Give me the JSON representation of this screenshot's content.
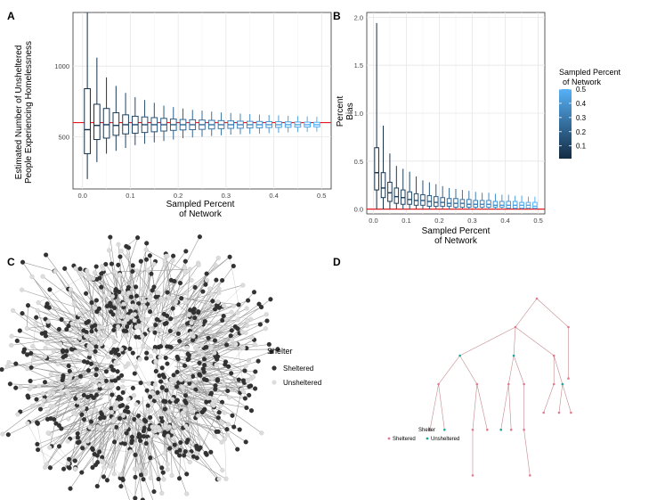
{
  "panels": {
    "A": {
      "letter": "A",
      "xlabel": [
        "Sampled Percent",
        "of Network"
      ],
      "ylabel": [
        "Estimated Number of Unsheltered",
        "People Experiencing Homelessness"
      ],
      "x_ticks": [
        "0.0",
        "0.1",
        "0.2",
        "0.3",
        "0.4",
        "0.5"
      ],
      "y_ticks": [
        "500",
        "1000"
      ]
    },
    "B": {
      "letter": "B",
      "xlabel": [
        "Sampled Percent",
        "of Network"
      ],
      "ylabel": [
        "Percent",
        "Bias"
      ],
      "x_ticks": [
        "0.0",
        "0.1",
        "0.2",
        "0.3",
        "0.4",
        "0.5"
      ],
      "y_ticks": [
        "0.0",
        "0.5",
        "1.0",
        "1.5",
        "2.0"
      ]
    },
    "C": {
      "letter": "C",
      "legend_title": "Shelter",
      "legend_items": [
        "Sheltered",
        "Unsheltered"
      ]
    },
    "D": {
      "letter": "D",
      "legend_title": "Shelter",
      "legend_items": [
        "Sheltered",
        "Unsheltered"
      ]
    }
  },
  "colorbar": {
    "title": [
      "Sampled Percent",
      "of Network"
    ],
    "ticks": [
      "0.5",
      "0.4",
      "0.3",
      "0.2",
      "0.1"
    ],
    "low_color": "#132B43",
    "high_color": "#56B1F7"
  },
  "colors": {
    "reference_line": "#e31a1c",
    "sheltered_C": "#333333",
    "unsheltered_C": "#dddddd",
    "sheltered_D": "#e07b91",
    "unsheltered_D": "#1aa89a",
    "panel_bg": "#ffffff",
    "grid": "#ebebeb"
  },
  "chart_data": [
    {
      "panel": "A",
      "type": "box",
      "x": [
        0.01,
        0.03,
        0.05,
        0.07,
        0.09,
        0.11,
        0.13,
        0.15,
        0.17,
        0.19,
        0.21,
        0.23,
        0.25,
        0.27,
        0.29,
        0.31,
        0.33,
        0.35,
        0.37,
        0.39,
        0.41,
        0.43,
        0.45,
        0.47,
        0.49
      ],
      "median": [
        550,
        580,
        585,
        580,
        585,
        585,
        585,
        585,
        585,
        585,
        585,
        585,
        585,
        585,
        585,
        585,
        585,
        585,
        585,
        585,
        585,
        585,
        585,
        585,
        585
      ],
      "q1": [
        380,
        480,
        490,
        510,
        520,
        525,
        530,
        535,
        540,
        545,
        548,
        550,
        552,
        555,
        557,
        559,
        560,
        562,
        563,
        565,
        566,
        567,
        568,
        569,
        570
      ],
      "q3": [
        840,
        730,
        700,
        670,
        655,
        645,
        640,
        635,
        630,
        625,
        622,
        620,
        618,
        616,
        614,
        612,
        610,
        609,
        608,
        607,
        606,
        605,
        604,
        603,
        602
      ],
      "whisker_low": [
        200,
        320,
        380,
        400,
        420,
        440,
        450,
        460,
        470,
        480,
        490,
        495,
        500,
        505,
        510,
        515,
        518,
        520,
        522,
        525,
        528,
        530,
        532,
        534,
        536
      ],
      "whisker_high": [
        1380,
        1060,
        920,
        860,
        810,
        780,
        760,
        740,
        720,
        710,
        700,
        690,
        685,
        678,
        672,
        668,
        664,
        660,
        657,
        654,
        651,
        648,
        646,
        644,
        642
      ],
      "reference": 600,
      "xlim": [
        -0.02,
        0.52
      ],
      "ylim": [
        130,
        1380
      ]
    },
    {
      "panel": "B",
      "type": "box",
      "x": [
        0.01,
        0.03,
        0.05,
        0.07,
        0.09,
        0.11,
        0.13,
        0.15,
        0.17,
        0.19,
        0.21,
        0.23,
        0.25,
        0.27,
        0.29,
        0.31,
        0.33,
        0.35,
        0.37,
        0.39,
        0.41,
        0.43,
        0.45,
        0.47,
        0.49
      ],
      "median": [
        0.38,
        0.22,
        0.17,
        0.13,
        0.12,
        0.1,
        0.09,
        0.09,
        0.08,
        0.07,
        0.07,
        0.06,
        0.06,
        0.06,
        0.05,
        0.05,
        0.05,
        0.05,
        0.04,
        0.04,
        0.04,
        0.04,
        0.04,
        0.04,
        0.03
      ],
      "q1": [
        0.2,
        0.12,
        0.08,
        0.06,
        0.05,
        0.05,
        0.04,
        0.04,
        0.03,
        0.03,
        0.03,
        0.03,
        0.02,
        0.02,
        0.02,
        0.02,
        0.02,
        0.02,
        0.02,
        0.02,
        0.01,
        0.01,
        0.01,
        0.01,
        0.01
      ],
      "q3": [
        0.64,
        0.38,
        0.28,
        0.22,
        0.2,
        0.18,
        0.16,
        0.15,
        0.14,
        0.13,
        0.12,
        0.11,
        0.11,
        0.1,
        0.1,
        0.09,
        0.09,
        0.09,
        0.08,
        0.08,
        0.08,
        0.08,
        0.07,
        0.07,
        0.07
      ],
      "whisker_low": [
        0.0,
        0.0,
        0.0,
        0.0,
        0.0,
        0.0,
        0.0,
        0.0,
        0.0,
        0.0,
        0.0,
        0.0,
        0.0,
        0.0,
        0.0,
        0.0,
        0.0,
        0.0,
        0.0,
        0.0,
        0.0,
        0.0,
        0.0,
        0.0,
        0.0
      ],
      "whisker_high": [
        1.94,
        0.87,
        0.58,
        0.45,
        0.42,
        0.39,
        0.34,
        0.3,
        0.28,
        0.26,
        0.24,
        0.22,
        0.21,
        0.2,
        0.19,
        0.18,
        0.17,
        0.17,
        0.16,
        0.15,
        0.15,
        0.14,
        0.14,
        0.13,
        0.13
      ],
      "reference": 0.0,
      "xlim": [
        -0.02,
        0.52
      ],
      "ylim": [
        -0.05,
        2.05
      ]
    },
    {
      "panel": "C",
      "type": "network",
      "sheltered_count": 560,
      "unsheltered_count": 380,
      "seed": 7
    },
    {
      "panel": "D",
      "type": "tree",
      "nodes": [
        {
          "id": 0,
          "parent": -1,
          "x": 0.0,
          "y": 0.0,
          "shelter": "Sheltered"
        },
        {
          "id": 1,
          "parent": 0,
          "x": -2.5,
          "y": 1.0,
          "shelter": "Sheltered"
        },
        {
          "id": 2,
          "parent": 0,
          "x": 3.7,
          "y": 1.0,
          "shelter": "Sheltered"
        },
        {
          "id": 3,
          "parent": 2,
          "x": 3.7,
          "y": 2.8,
          "shelter": "Sheltered"
        },
        {
          "id": 4,
          "parent": 1,
          "x": -9.0,
          "y": 2.0,
          "shelter": "Unsheltered"
        },
        {
          "id": 5,
          "parent": 1,
          "x": -2.7,
          "y": 2.0,
          "shelter": "Unsheltered"
        },
        {
          "id": 6,
          "parent": 1,
          "x": 2.0,
          "y": 2.0,
          "shelter": "Sheltered"
        },
        {
          "id": 7,
          "parent": 4,
          "x": -11.5,
          "y": 3.0,
          "shelter": "Sheltered"
        },
        {
          "id": 8,
          "parent": 4,
          "x": -7.0,
          "y": 3.0,
          "shelter": "Sheltered"
        },
        {
          "id": 9,
          "parent": 5,
          "x": -3.3,
          "y": 3.0,
          "shelter": "Sheltered"
        },
        {
          "id": 10,
          "parent": 5,
          "x": -1.5,
          "y": 3.0,
          "shelter": "Sheltered"
        },
        {
          "id": 11,
          "parent": 6,
          "x": 2.0,
          "y": 3.0,
          "shelter": "Sheltered"
        },
        {
          "id": 12,
          "parent": 6,
          "x": 3.0,
          "y": 3.0,
          "shelter": "Unsheltered"
        },
        {
          "id": 13,
          "parent": 7,
          "x": -12.5,
          "y": 4.6,
          "shelter": "Sheltered"
        },
        {
          "id": 14,
          "parent": 7,
          "x": -10.8,
          "y": 4.6,
          "shelter": "Unsheltered"
        },
        {
          "id": 15,
          "parent": 8,
          "x": -7.5,
          "y": 4.6,
          "shelter": "Sheltered"
        },
        {
          "id": 16,
          "parent": 8,
          "x": -5.8,
          "y": 4.6,
          "shelter": "Sheltered"
        },
        {
          "id": 17,
          "parent": 9,
          "x": -4.2,
          "y": 4.6,
          "shelter": "Unsheltered"
        },
        {
          "id": 18,
          "parent": 9,
          "x": -3.0,
          "y": 4.6,
          "shelter": "Sheltered"
        },
        {
          "id": 19,
          "parent": 10,
          "x": -1.5,
          "y": 4.6,
          "shelter": "Sheltered"
        },
        {
          "id": 20,
          "parent": 11,
          "x": 0.8,
          "y": 4.0,
          "shelter": "Sheltered"
        },
        {
          "id": 21,
          "parent": 12,
          "x": 2.6,
          "y": 4.0,
          "shelter": "Sheltered"
        },
        {
          "id": 22,
          "parent": 12,
          "x": 4.0,
          "y": 4.0,
          "shelter": "Sheltered"
        },
        {
          "id": 23,
          "parent": 15,
          "x": -7.5,
          "y": 6.2,
          "shelter": "Sheltered"
        },
        {
          "id": 24,
          "parent": 19,
          "x": -0.8,
          "y": 6.2,
          "shelter": "Sheltered"
        }
      ]
    }
  ]
}
